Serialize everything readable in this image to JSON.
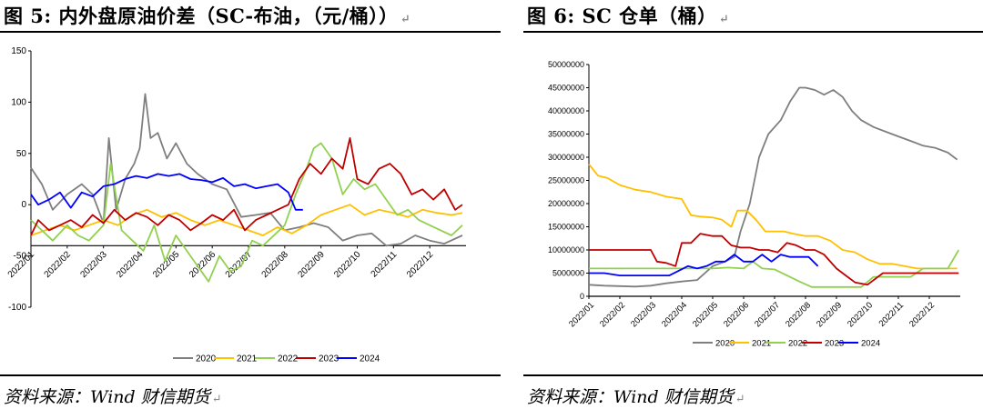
{
  "left_panel": {
    "title": "图 5: 内外盘原油价差（SC-布油，（元/桶））",
    "source": "资料来源：Wind 财信期货"
  },
  "right_panel": {
    "title": "图 6: SC 仓单（桶）",
    "source": "资料来源：Wind 财信期货"
  },
  "return_mark": "↵",
  "chart_data": [
    {
      "type": "line",
      "title": "",
      "xlabel": "",
      "ylabel": "",
      "ylim": [
        -100,
        150
      ],
      "yticks": [
        -100,
        -50,
        0,
        50,
        100,
        150
      ],
      "x_tick_labels": [
        "2022/01",
        "2022/02",
        "2022/03",
        "2022/04",
        "2022/05",
        "2022/06",
        "2022/07",
        "2022/08",
        "2022/09",
        "2022/10",
        "2022/11",
        "2022/12"
      ],
      "x_domain_months": [
        1,
        13
      ],
      "legend_position": "bottom",
      "series": [
        {
          "name": "2020",
          "color": "#7f7f7f",
          "x": [
            1.0,
            1.3,
            1.6,
            2.0,
            2.4,
            2.7,
            3.0,
            3.15,
            3.35,
            3.6,
            3.85,
            4.0,
            4.15,
            4.3,
            4.5,
            4.75,
            5.0,
            5.3,
            5.6,
            6.0,
            6.4,
            6.8,
            7.2,
            7.6,
            8.0,
            8.4,
            8.8,
            9.2,
            9.6,
            10.0,
            10.4,
            10.8,
            11.2,
            11.6,
            12.0,
            12.4,
            12.9
          ],
          "y": [
            36,
            20,
            -5,
            10,
            20,
            10,
            -18,
            65,
            -5,
            25,
            40,
            55,
            108,
            65,
            70,
            45,
            60,
            40,
            30,
            20,
            15,
            -12,
            -10,
            -8,
            -25,
            -22,
            -18,
            -22,
            -35,
            -30,
            -28,
            -40,
            -38,
            -30,
            -35,
            -38,
            -30
          ]
        },
        {
          "name": "2021",
          "color": "#ffc000",
          "x": [
            1.0,
            1.4,
            1.8,
            2.2,
            2.6,
            3.0,
            3.4,
            3.8,
            4.2,
            4.6,
            5.0,
            5.4,
            5.8,
            6.2,
            6.6,
            7.0,
            7.4,
            7.8,
            8.2,
            8.6,
            9.0,
            9.4,
            9.8,
            10.2,
            10.6,
            11.0,
            11.4,
            11.8,
            12.2,
            12.6,
            12.9
          ],
          "y": [
            -30,
            -25,
            -20,
            -25,
            -20,
            -15,
            -20,
            -10,
            -5,
            -12,
            -8,
            -15,
            -20,
            -15,
            -20,
            -25,
            -30,
            -22,
            -28,
            -20,
            -10,
            -5,
            0,
            -10,
            -5,
            -8,
            -12,
            -5,
            -8,
            -10,
            -8
          ]
        },
        {
          "name": "2022",
          "color": "#92d050",
          "x": [
            1.0,
            1.3,
            1.6,
            2.0,
            2.3,
            2.6,
            3.0,
            3.2,
            3.5,
            3.8,
            4.1,
            4.4,
            4.7,
            5.0,
            5.3,
            5.6,
            5.9,
            6.2,
            6.5,
            6.8,
            7.1,
            7.4,
            7.7,
            8.0,
            8.3,
            8.6,
            8.8,
            9.0,
            9.3,
            9.6,
            9.9,
            10.2,
            10.5,
            10.8,
            11.1,
            11.4,
            11.7,
            12.0,
            12.3,
            12.6,
            12.9
          ],
          "y": [
            -15,
            -25,
            -35,
            -20,
            -30,
            -35,
            -20,
            40,
            -25,
            -35,
            -45,
            -20,
            -55,
            -30,
            -45,
            -60,
            -75,
            -50,
            -65,
            -60,
            -35,
            -40,
            -30,
            -20,
            10,
            35,
            55,
            60,
            45,
            10,
            25,
            15,
            20,
            5,
            -10,
            -5,
            -15,
            -20,
            -25,
            -30,
            -20
          ]
        },
        {
          "name": "2023",
          "color": "#c00000",
          "x": [
            1.0,
            1.2,
            1.5,
            1.8,
            2.1,
            2.4,
            2.7,
            3.0,
            3.3,
            3.6,
            3.9,
            4.2,
            4.5,
            4.8,
            5.1,
            5.4,
            5.7,
            6.0,
            6.3,
            6.6,
            6.9,
            7.2,
            7.5,
            7.8,
            8.1,
            8.4,
            8.7,
            9.0,
            9.3,
            9.6,
            9.8,
            10.0,
            10.3,
            10.6,
            10.9,
            11.2,
            11.5,
            11.8,
            12.1,
            12.4,
            12.7,
            12.9
          ],
          "y": [
            -30,
            -15,
            -25,
            -20,
            -15,
            -22,
            -10,
            -18,
            -5,
            -15,
            -8,
            -12,
            -20,
            -10,
            -15,
            -25,
            -18,
            -10,
            -15,
            -5,
            -25,
            -15,
            -10,
            -5,
            0,
            25,
            40,
            30,
            45,
            35,
            65,
            25,
            20,
            35,
            40,
            30,
            10,
            15,
            5,
            15,
            -5,
            0
          ]
        },
        {
          "name": "2024",
          "color": "#0000ff",
          "x": [
            1.0,
            1.2,
            1.5,
            1.8,
            2.1,
            2.4,
            2.7,
            3.0,
            3.3,
            3.6,
            3.9,
            4.2,
            4.5,
            4.8,
            5.1,
            5.4,
            5.7,
            6.0,
            6.3,
            6.6,
            6.9,
            7.2,
            7.5,
            7.8,
            8.1,
            8.3,
            8.5
          ],
          "y": [
            10,
            0,
            5,
            12,
            -3,
            12,
            8,
            18,
            20,
            25,
            28,
            26,
            30,
            28,
            30,
            25,
            24,
            22,
            26,
            18,
            20,
            16,
            18,
            20,
            12,
            -5,
            -5
          ]
        }
      ]
    },
    {
      "type": "line",
      "title": "",
      "xlabel": "",
      "ylabel": "",
      "ylim": [
        0,
        50000000
      ],
      "yticks": [
        0,
        5000000,
        10000000,
        15000000,
        20000000,
        25000000,
        30000000,
        35000000,
        40000000,
        45000000,
        50000000
      ],
      "x_tick_labels": [
        "2022/01",
        "2022/02",
        "2022/03",
        "2022/04",
        "2022/05",
        "2022/06",
        "2022/07",
        "2022/08",
        "2022/09",
        "2022/10",
        "2022/11",
        "2022/12"
      ],
      "x_domain_months": [
        1,
        13
      ],
      "legend_position": "bottom",
      "series": [
        {
          "name": "2020",
          "color": "#7f7f7f",
          "x": [
            1.0,
            1.5,
            2.0,
            2.5,
            3.0,
            3.5,
            4.0,
            4.5,
            5.0,
            5.4,
            5.7,
            5.9,
            6.2,
            6.5,
            6.8,
            7.2,
            7.5,
            7.8,
            8.0,
            8.3,
            8.6,
            8.9,
            9.2,
            9.5,
            9.8,
            10.2,
            10.6,
            11.0,
            11.4,
            11.8,
            12.2,
            12.6,
            12.9
          ],
          "y": [
            2500000,
            2300000,
            2200000,
            2100000,
            2300000,
            2800000,
            3200000,
            3500000,
            6500000,
            7500000,
            8500000,
            14000000,
            20000000,
            30000000,
            35000000,
            38000000,
            42000000,
            45000000,
            45000000,
            44500000,
            43500000,
            44500000,
            43000000,
            40000000,
            38000000,
            36500000,
            35500000,
            34500000,
            33500000,
            32500000,
            32000000,
            31000000,
            29500000
          ]
        },
        {
          "name": "2021",
          "color": "#ffc000",
          "x": [
            1.0,
            1.3,
            1.6,
            2.0,
            2.5,
            3.0,
            3.5,
            4.0,
            4.3,
            4.6,
            5.0,
            5.3,
            5.6,
            5.8,
            6.1,
            6.4,
            6.7,
            7.0,
            7.3,
            7.6,
            8.0,
            8.4,
            8.8,
            9.2,
            9.6,
            10.0,
            10.4,
            10.8,
            11.2,
            11.6,
            12.0,
            12.4,
            12.9
          ],
          "y": [
            28500000,
            26000000,
            25500000,
            24000000,
            23000000,
            22500000,
            21500000,
            21000000,
            17500000,
            17200000,
            17000000,
            16500000,
            15000000,
            18500000,
            18500000,
            16500000,
            14000000,
            14000000,
            14000000,
            13500000,
            13000000,
            13000000,
            12000000,
            10000000,
            9500000,
            8000000,
            7000000,
            7000000,
            6500000,
            6000000,
            6000000,
            6000000,
            6000000
          ]
        },
        {
          "name": "2022",
          "color": "#92d050",
          "x": [
            1.0,
            2.0,
            3.0,
            4.0,
            4.5,
            5.0,
            5.5,
            6.0,
            6.3,
            6.6,
            7.0,
            7.4,
            7.8,
            8.2,
            8.6,
            9.0,
            9.4,
            9.8,
            10.2,
            10.6,
            11.0,
            11.4,
            11.8,
            12.2,
            12.6,
            12.95
          ],
          "y": [
            6000000,
            6000000,
            6000000,
            6000000,
            6000000,
            6000000,
            6200000,
            6000000,
            7500000,
            6000000,
            5800000,
            4500000,
            3200000,
            2000000,
            2000000,
            2000000,
            2000000,
            2000000,
            4200000,
            4200000,
            4200000,
            4200000,
            6000000,
            6000000,
            6000000,
            10000000
          ]
        },
        {
          "name": "2023",
          "color": "#c00000",
          "x": [
            1.0,
            1.5,
            2.0,
            2.5,
            3.0,
            3.2,
            3.5,
            3.8,
            4.0,
            4.3,
            4.6,
            5.0,
            5.3,
            5.6,
            5.9,
            6.2,
            6.5,
            6.8,
            7.1,
            7.4,
            7.7,
            8.0,
            8.3,
            8.6,
            9.0,
            9.3,
            9.6,
            10.0,
            10.5,
            11.0,
            11.5,
            12.0,
            12.5,
            12.95
          ],
          "y": [
            10000000,
            10000000,
            10000000,
            10000000,
            10000000,
            7500000,
            7200000,
            6500000,
            11500000,
            11500000,
            13500000,
            13000000,
            13000000,
            11000000,
            10500000,
            10500000,
            10000000,
            10000000,
            9500000,
            11500000,
            11000000,
            10000000,
            10000000,
            9000000,
            6000000,
            4500000,
            3000000,
            2500000,
            5000000,
            5000000,
            5000000,
            5000000,
            5000000,
            5000000
          ]
        },
        {
          "name": "2024",
          "color": "#0000ff",
          "x": [
            1.0,
            1.5,
            2.0,
            2.5,
            3.0,
            3.3,
            3.6,
            3.9,
            4.2,
            4.5,
            4.8,
            5.1,
            5.4,
            5.7,
            6.0,
            6.3,
            6.6,
            6.9,
            7.2,
            7.5,
            7.8,
            8.1,
            8.4
          ],
          "y": [
            5000000,
            5000000,
            4500000,
            4500000,
            4500000,
            4500000,
            4500000,
            5500000,
            6500000,
            6000000,
            6500000,
            7500000,
            7500000,
            9000000,
            7500000,
            7500000,
            9000000,
            7500000,
            9000000,
            8500000,
            8500000,
            8500000,
            6500000
          ]
        }
      ]
    }
  ]
}
